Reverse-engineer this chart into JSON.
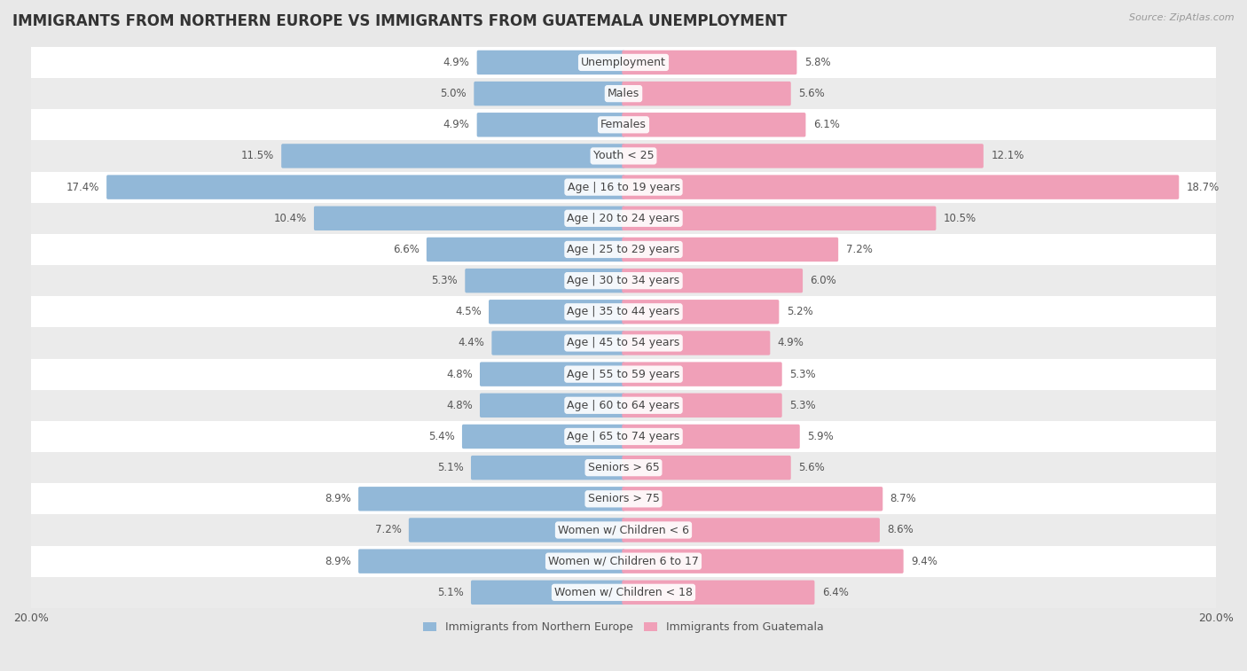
{
  "title": "IMMIGRANTS FROM NORTHERN EUROPE VS IMMIGRANTS FROM GUATEMALA UNEMPLOYMENT",
  "source": "Source: ZipAtlas.com",
  "categories": [
    "Unemployment",
    "Males",
    "Females",
    "Youth < 25",
    "Age | 16 to 19 years",
    "Age | 20 to 24 years",
    "Age | 25 to 29 years",
    "Age | 30 to 34 years",
    "Age | 35 to 44 years",
    "Age | 45 to 54 years",
    "Age | 55 to 59 years",
    "Age | 60 to 64 years",
    "Age | 65 to 74 years",
    "Seniors > 65",
    "Seniors > 75",
    "Women w/ Children < 6",
    "Women w/ Children 6 to 17",
    "Women w/ Children < 18"
  ],
  "left_values": [
    4.9,
    5.0,
    4.9,
    11.5,
    17.4,
    10.4,
    6.6,
    5.3,
    4.5,
    4.4,
    4.8,
    4.8,
    5.4,
    5.1,
    8.9,
    7.2,
    8.9,
    5.1
  ],
  "right_values": [
    5.8,
    5.6,
    6.1,
    12.1,
    18.7,
    10.5,
    7.2,
    6.0,
    5.2,
    4.9,
    5.3,
    5.3,
    5.9,
    5.6,
    8.7,
    8.6,
    9.4,
    6.4
  ],
  "left_color": "#92b8d8",
  "right_color": "#f0a0b8",
  "bar_height": 0.68,
  "xlim": 20.0,
  "background_color": "#e8e8e8",
  "row_color_even": "#ffffff",
  "row_color_odd": "#ebebeb",
  "legend_left": "Immigrants from Northern Europe",
  "legend_right": "Immigrants from Guatemala",
  "title_fontsize": 12,
  "label_fontsize": 9,
  "value_fontsize": 8.5,
  "axis_label_fontsize": 9
}
